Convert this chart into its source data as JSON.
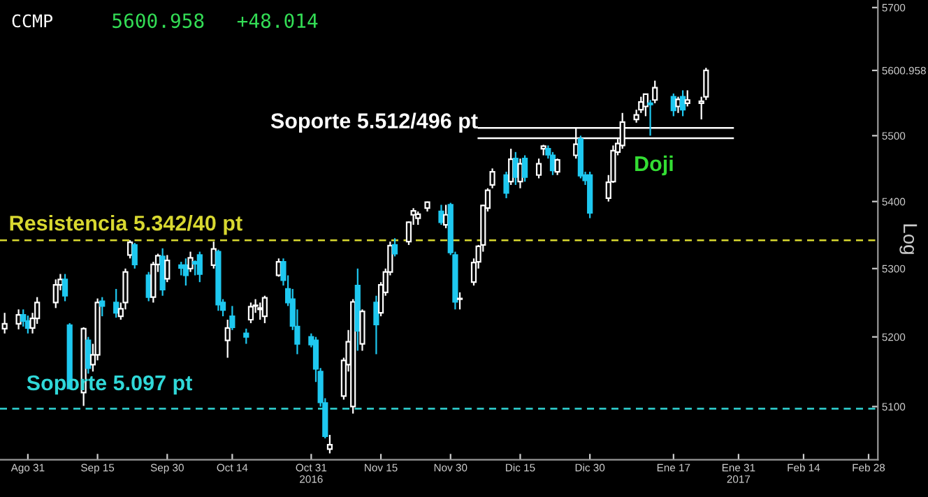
{
  "chart_data": {
    "type": "candlestick",
    "title": "CCMP",
    "ylabel": "Log",
    "log": true,
    "grid": false,
    "legend": false,
    "annotations": [
      "5600.958",
      "+48.014",
      "Doji"
    ],
    "x": [
      "2016-08-26",
      "2016-08-29",
      "2016-08-30",
      "2016-08-31",
      "2016-09-01",
      "2016-09-02",
      "2016-09-06",
      "2016-09-07",
      "2016-09-08",
      "2016-09-09",
      "2016-09-12",
      "2016-09-13",
      "2016-09-14",
      "2016-09-15",
      "2016-09-16",
      "2016-09-19",
      "2016-09-20",
      "2016-09-21",
      "2016-09-22",
      "2016-09-23",
      "2016-09-26",
      "2016-09-27",
      "2016-09-28",
      "2016-09-29",
      "2016-09-30",
      "2016-10-03",
      "2016-10-04",
      "2016-10-05",
      "2016-10-06",
      "2016-10-07",
      "2016-10-10",
      "2016-10-11",
      "2016-10-12",
      "2016-10-13",
      "2016-10-14",
      "2016-10-17",
      "2016-10-18",
      "2016-10-19",
      "2016-10-20",
      "2016-10-21",
      "2016-10-24",
      "2016-10-25",
      "2016-10-26",
      "2016-10-27",
      "2016-10-28",
      "2016-10-31",
      "2016-11-01",
      "2016-11-02",
      "2016-11-03",
      "2016-11-04",
      "2016-11-07",
      "2016-11-08",
      "2016-11-09",
      "2016-11-10",
      "2016-11-11",
      "2016-11-14",
      "2016-11-15",
      "2016-11-16",
      "2016-11-17",
      "2016-11-18",
      "2016-11-21",
      "2016-11-22",
      "2016-11-23",
      "2016-11-25",
      "2016-11-28",
      "2016-11-29",
      "2016-11-30",
      "2016-12-01",
      "2016-12-02",
      "2016-12-05",
      "2016-12-06",
      "2016-12-07",
      "2016-12-08",
      "2016-12-09",
      "2016-12-12",
      "2016-12-13",
      "2016-12-14",
      "2016-12-15",
      "2016-12-16",
      "2016-12-19",
      "2016-12-20",
      "2016-12-21",
      "2016-12-22",
      "2016-12-23",
      "2016-12-27",
      "2016-12-28",
      "2016-12-29",
      "2016-12-30",
      "2017-01-03",
      "2017-01-04",
      "2017-01-05",
      "2017-01-06",
      "2017-01-09",
      "2017-01-10",
      "2017-01-11",
      "2017-01-12",
      "2017-01-13",
      "2017-01-17",
      "2017-01-18",
      "2017-01-19",
      "2017-01-20",
      "2017-01-23",
      "2017-01-24"
    ],
    "ohlc": [
      [
        5212,
        5235,
        5205,
        5219
      ],
      [
        5219,
        5240,
        5211,
        5232
      ],
      [
        5232,
        5240,
        5215,
        5223
      ],
      [
        5223,
        5231,
        5205,
        5213
      ],
      [
        5213,
        5235,
        5205,
        5227
      ],
      [
        5227,
        5258,
        5219,
        5250
      ],
      [
        5250,
        5284,
        5242,
        5276
      ],
      [
        5276,
        5292,
        5268,
        5284
      ],
      [
        5284,
        5292,
        5252,
        5260
      ],
      [
        5217,
        5220,
        5125,
        5126
      ],
      [
        5120,
        5214,
        5101,
        5212
      ],
      [
        5195,
        5200,
        5147,
        5155
      ],
      [
        5160,
        5190,
        5150,
        5174
      ],
      [
        5174,
        5256,
        5166,
        5250
      ],
      [
        5252,
        5258,
        5230,
        5245
      ],
      [
        5250,
        5270,
        5228,
        5235
      ],
      [
        5230,
        5250,
        5225,
        5241
      ],
      [
        5250,
        5300,
        5240,
        5295
      ],
      [
        5320,
        5342,
        5315,
        5339
      ],
      [
        5335,
        5338,
        5300,
        5306
      ],
      [
        5290,
        5295,
        5252,
        5258
      ],
      [
        5258,
        5310,
        5250,
        5306
      ],
      [
        5306,
        5322,
        5295,
        5319
      ],
      [
        5318,
        5330,
        5260,
        5269
      ],
      [
        5285,
        5320,
        5280,
        5312
      ],
      [
        5305,
        5310,
        5290,
        5301
      ],
      [
        5305,
        5315,
        5275,
        5290
      ],
      [
        5300,
        5325,
        5295,
        5316
      ],
      [
        5310,
        5312,
        5290,
        5307
      ],
      [
        5320,
        5325,
        5280,
        5292
      ],
      [
        5305,
        5340,
        5300,
        5329
      ],
      [
        5325,
        5328,
        5238,
        5247
      ],
      [
        5250,
        5255,
        5230,
        5239
      ],
      [
        5195,
        5225,
        5170,
        5213
      ],
      [
        5230,
        5245,
        5210,
        5214
      ],
      [
        5205,
        5212,
        5190,
        5200
      ],
      [
        5225,
        5250,
        5220,
        5244
      ],
      [
        5245,
        5255,
        5235,
        5246
      ],
      [
        5240,
        5250,
        5225,
        5242
      ],
      [
        5230,
        5260,
        5220,
        5257
      ],
      [
        5290,
        5315,
        5288,
        5310
      ],
      [
        5310,
        5315,
        5275,
        5283
      ],
      [
        5270,
        5290,
        5245,
        5250
      ],
      [
        5255,
        5270,
        5210,
        5216
      ],
      [
        5215,
        5240,
        5175,
        5190
      ],
      [
        5200,
        5205,
        5185,
        5189
      ],
      [
        5195,
        5200,
        5135,
        5154
      ],
      [
        5150,
        5155,
        5100,
        5106
      ],
      [
        5105,
        5112,
        5055,
        5058
      ],
      [
        5040,
        5060,
        5034,
        5046
      ],
      [
        5115,
        5170,
        5110,
        5166
      ],
      [
        5160,
        5210,
        5150,
        5193
      ],
      [
        5100,
        5255,
        5090,
        5251
      ],
      [
        5275,
        5300,
        5180,
        5209
      ],
      [
        5190,
        5240,
        5180,
        5237
      ],
      [
        5250,
        5260,
        5175,
        5218
      ],
      [
        5235,
        5280,
        5230,
        5276
      ],
      [
        5265,
        5300,
        5260,
        5295
      ],
      [
        5295,
        5340,
        5290,
        5334
      ],
      [
        5335,
        5345,
        5318,
        5322
      ],
      [
        5340,
        5370,
        5335,
        5369
      ],
      [
        5380,
        5390,
        5365,
        5386
      ],
      [
        5375,
        5385,
        5365,
        5381
      ],
      [
        5390,
        5400,
        5385,
        5399
      ],
      [
        5385,
        5395,
        5365,
        5369
      ],
      [
        5365,
        5395,
        5360,
        5380
      ],
      [
        5395,
        5398,
        5320,
        5324
      ],
      [
        5320,
        5325,
        5240,
        5251
      ],
      [
        5255,
        5265,
        5240,
        5256
      ],
      [
        5280,
        5315,
        5275,
        5309
      ],
      [
        5310,
        5335,
        5300,
        5333
      ],
      [
        5335,
        5395,
        5325,
        5394
      ],
      [
        5390,
        5420,
        5385,
        5417
      ],
      [
        5425,
        5450,
        5420,
        5445
      ],
      [
        5440,
        5445,
        5405,
        5413
      ],
      [
        5430,
        5480,
        5425,
        5464
      ],
      [
        5465,
        5475,
        5425,
        5437
      ],
      [
        5430,
        5465,
        5420,
        5457
      ],
      [
        5465,
        5470,
        5430,
        5437
      ],
      [
        5440,
        5465,
        5435,
        5457
      ],
      [
        5480,
        5486,
        5470,
        5484
      ],
      [
        5480,
        5485,
        5465,
        5471
      ],
      [
        5470,
        5475,
        5440,
        5447
      ],
      [
        5445,
        5465,
        5440,
        5463
      ],
      [
        5470,
        5512,
        5465,
        5487
      ],
      [
        5495,
        5500,
        5435,
        5439
      ],
      [
        5440,
        5445,
        5425,
        5432
      ],
      [
        5440,
        5445,
        5375,
        5383
      ],
      [
        5405,
        5440,
        5400,
        5429
      ],
      [
        5430,
        5485,
        5428,
        5477
      ],
      [
        5475,
        5495,
        5470,
        5488
      ],
      [
        5485,
        5535,
        5480,
        5521
      ],
      [
        5525,
        5540,
        5520,
        5532
      ],
      [
        5540,
        5560,
        5535,
        5552
      ],
      [
        5545,
        5565,
        5530,
        5564
      ],
      [
        5550,
        5555,
        5500,
        5548
      ],
      [
        5555,
        5585,
        5550,
        5574
      ],
      [
        5560,
        5565,
        5530,
        5539
      ],
      [
        5545,
        5560,
        5535,
        5556
      ],
      [
        5560,
        5570,
        5530,
        5540
      ],
      [
        5550,
        5570,
        5545,
        5555
      ],
      [
        5550,
        5560,
        5525,
        5553
      ],
      [
        5560,
        5605,
        5555,
        5601
      ]
    ],
    "colors": [
      "#ffffff",
      "#ffffff",
      "#1ec8f0",
      "#1ec8f0",
      "#ffffff",
      "#ffffff",
      "#ffffff",
      "#ffffff",
      "#1ec8f0",
      "#1ec8f0",
      "#ffffff",
      "#1ec8f0",
      "#ffffff",
      "#ffffff",
      "#1ec8f0",
      "#1ec8f0",
      "#ffffff",
      "#ffffff",
      "#ffffff",
      "#1ec8f0",
      "#1ec8f0",
      "#ffffff",
      "#ffffff",
      "#1ec8f0",
      "#ffffff",
      "#1ec8f0",
      "#1ec8f0",
      "#ffffff",
      "#1ec8f0",
      "#1ec8f0",
      "#ffffff",
      "#1ec8f0",
      "#1ec8f0",
      "#ffffff",
      "#1ec8f0",
      "#1ec8f0",
      "#ffffff",
      "#ffffff",
      "#ffffff",
      "#ffffff",
      "#ffffff",
      "#1ec8f0",
      "#1ec8f0",
      "#1ec8f0",
      "#1ec8f0",
      "#1ec8f0",
      "#1ec8f0",
      "#1ec8f0",
      "#1ec8f0",
      "#ffffff",
      "#ffffff",
      "#ffffff",
      "#ffffff",
      "#1ec8f0",
      "#ffffff",
      "#1ec8f0",
      "#ffffff",
      "#ffffff",
      "#ffffff",
      "#1ec8f0",
      "#ffffff",
      "#ffffff",
      "#ffffff",
      "#ffffff",
      "#1ec8f0",
      "#ffffff",
      "#1ec8f0",
      "#1ec8f0",
      "#ffffff",
      "#ffffff",
      "#ffffff",
      "#ffffff",
      "#ffffff",
      "#ffffff",
      "#1ec8f0",
      "#ffffff",
      "#1ec8f0",
      "#ffffff",
      "#1ec8f0",
      "#ffffff",
      "#ffffff",
      "#1ec8f0",
      "#1ec8f0",
      "#ffffff",
      "#ffffff",
      "#1ec8f0",
      "#1ec8f0",
      "#1ec8f0",
      "#ffffff",
      "#ffffff",
      "#ffffff",
      "#ffffff",
      "#ffffff",
      "#ffffff",
      "#ffffff",
      "#1ec8f0",
      "#ffffff",
      "#1ec8f0",
      "#ffffff",
      "#1ec8f0",
      "#ffffff",
      "#ffffff",
      "#ffffff"
    ],
    "xlim": [
      "2016-08-25",
      "2017-03-02"
    ],
    "xticks": [
      {
        "value": "2016-08-31",
        "label": "Ago 31"
      },
      {
        "value": "2016-09-15",
        "label": "Sep 15"
      },
      {
        "value": "2016-09-30",
        "label": "Sep 30"
      },
      {
        "value": "2016-10-14",
        "label": "Oct 14"
      },
      {
        "value": "2016-10-31",
        "label": "Oct 31\n2016"
      },
      {
        "value": "2016-11-15",
        "label": "Nov 15"
      },
      {
        "value": "2016-11-30",
        "label": "Nov 30"
      },
      {
        "value": "2016-12-15",
        "label": "Dic 15"
      },
      {
        "value": "2016-12-30",
        "label": "Dic 30"
      },
      {
        "value": "2017-01-17",
        "label": "Ene 17"
      },
      {
        "value": "2017-01-31",
        "label": "Ene 31\n2017"
      },
      {
        "value": "2017-02-14",
        "label": "Feb 14"
      },
      {
        "value": "2017-02-28",
        "label": "Feb 28"
      }
    ],
    "ylim": [
      5025,
      5712
    ],
    "yticks": [
      5100,
      5200,
      5300,
      5400,
      5500,
      {
        "value": 5600.958,
        "label": "5600.958"
      },
      5700
    ],
    "ref_lines": [
      {
        "axis": "y",
        "value": 5342,
        "label": "Resistencia 5.342/40 pt",
        "color": "#d8d830",
        "line_style": "dashed"
      },
      {
        "axis": "y",
        "value": 5097,
        "label": "Soporte 5.097 pt",
        "color": "#30d8d8",
        "line_style": "dashed"
      },
      {
        "axis": "y",
        "value": 5512,
        "label": "Soporte 5.512/496 pt",
        "color": "#ffffff",
        "line_style": "solid"
      },
      {
        "axis": "y",
        "value": 5496,
        "color": "#ffffff",
        "line_style": "solid"
      }
    ]
  }
}
